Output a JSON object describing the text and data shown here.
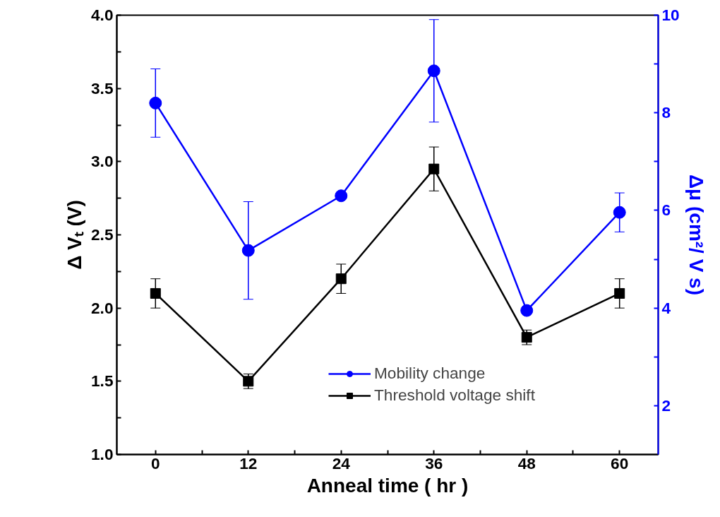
{
  "chart_data": {
    "type": "line",
    "xlabel": "Anneal time ( hr )",
    "ylabel": "Δ Vₜ (V)",
    "y2label": "Δμ (cm²/ V s)",
    "x": [
      0,
      12,
      24,
      36,
      48,
      60
    ],
    "series": [
      {
        "name": "Mobility change",
        "color": "#0000ff",
        "axis": "y2",
        "marker": "circle",
        "values": [
          8.2,
          5.18,
          6.3,
          8.86,
          3.95,
          5.96
        ],
        "errors": [
          0.7,
          1.0,
          null,
          1.05,
          null,
          0.4
        ]
      },
      {
        "name": "Threshold voltage shift",
        "color": "#000000",
        "marker": "square",
        "values": [
          2.1,
          1.5,
          2.2,
          2.95,
          1.8,
          2.1
        ],
        "errors": [
          0.1,
          0.05,
          0.1,
          0.15,
          0.05,
          0.1
        ]
      }
    ],
    "xlim": [
      -5,
      65
    ],
    "xticks": [
      0,
      {
        "value": 6,
        "label": null
      },
      12,
      {
        "value": 18,
        "label": null
      },
      24,
      {
        "value": 30,
        "label": null
      },
      36,
      {
        "value": 42,
        "label": null
      },
      48,
      {
        "value": 54,
        "label": null
      },
      60
    ],
    "ylim": [
      1.0,
      4.0
    ],
    "yticks": [
      {
        "value": 1.0,
        "label": "1.0"
      },
      {
        "value": 1.25,
        "label": null
      },
      1.5,
      {
        "value": 1.75,
        "label": null
      },
      {
        "value": 2.0,
        "label": "2.0"
      },
      {
        "value": 2.25,
        "label": null
      },
      2.5,
      {
        "value": 2.75,
        "label": null
      },
      {
        "value": 3.0,
        "label": "3.0"
      },
      {
        "value": 3.25,
        "label": null
      },
      3.5,
      {
        "value": 3.75,
        "label": null
      },
      {
        "value": 4.0,
        "label": "4.0"
      }
    ],
    "y2lim": [
      1,
      10
    ],
    "y2ticks": [
      2,
      {
        "value": 3,
        "label": null
      },
      4,
      {
        "value": 5,
        "label": null
      },
      6,
      {
        "value": 7,
        "label": null
      },
      8,
      {
        "value": 9,
        "label": null
      },
      10
    ],
    "grid": false,
    "legend": "bottom right",
    "line_style": "solid"
  }
}
